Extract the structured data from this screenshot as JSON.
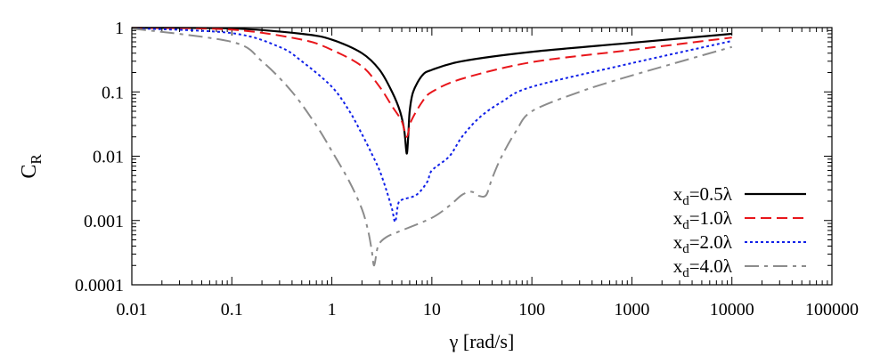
{
  "chart_data": {
    "type": "line",
    "xlabel": "γ [rad/s]",
    "ylabel": "C",
    "ylabel_sub": "R",
    "x_scale": "log",
    "y_scale": "log",
    "xlim": [
      0.01,
      100000
    ],
    "ylim": [
      0.0001,
      1
    ],
    "grid": false,
    "legend_position": "bottom-right",
    "x_ticks": [
      {
        "value": 0.01,
        "label": "0.01"
      },
      {
        "value": 0.1,
        "label": "0.1"
      },
      {
        "value": 1,
        "label": "1"
      },
      {
        "value": 10,
        "label": "10"
      },
      {
        "value": 100,
        "label": "100"
      },
      {
        "value": 1000,
        "label": "1000"
      },
      {
        "value": 10000,
        "label": "10000"
      },
      {
        "value": 100000,
        "label": "100000"
      }
    ],
    "y_ticks": [
      {
        "value": 0.0001,
        "label": "0.0001"
      },
      {
        "value": 0.001,
        "label": "0.001"
      },
      {
        "value": 0.01,
        "label": "0.01"
      },
      {
        "value": 0.1,
        "label": "0.1"
      },
      {
        "value": 1,
        "label": "1"
      }
    ],
    "series": [
      {
        "legend_main": "x",
        "legend_sub": "d",
        "legend_rest": "=0.5λ",
        "color": "#000000",
        "dash": "solid",
        "points": [
          [
            0.01,
            0.99
          ],
          [
            0.1,
            0.97
          ],
          [
            0.5,
            0.8
          ],
          [
            1,
            0.65
          ],
          [
            2,
            0.4
          ],
          [
            3,
            0.22
          ],
          [
            4,
            0.1
          ],
          [
            4.8,
            0.05
          ],
          [
            5.3,
            0.025
          ],
          [
            5.6,
            0.011
          ],
          [
            5.8,
            0.02
          ],
          [
            6,
            0.05
          ],
          [
            6.5,
            0.1
          ],
          [
            8,
            0.18
          ],
          [
            10,
            0.22
          ],
          [
            20,
            0.3
          ],
          [
            100,
            0.42
          ],
          [
            1000,
            0.58
          ],
          [
            10000,
            0.8
          ]
        ]
      },
      {
        "legend_main": "x",
        "legend_sub": "d",
        "legend_rest": "=1.0λ",
        "color": "#e8161b",
        "dash": "dashed",
        "points": [
          [
            0.01,
            0.99
          ],
          [
            0.1,
            0.93
          ],
          [
            0.5,
            0.65
          ],
          [
            1,
            0.45
          ],
          [
            2,
            0.25
          ],
          [
            3,
            0.12
          ],
          [
            4,
            0.06
          ],
          [
            5,
            0.035
          ],
          [
            5.6,
            0.02
          ],
          [
            6.2,
            0.035
          ],
          [
            8,
            0.07
          ],
          [
            10,
            0.1
          ],
          [
            20,
            0.16
          ],
          [
            100,
            0.29
          ],
          [
            1000,
            0.45
          ],
          [
            10000,
            0.7
          ]
        ]
      },
      {
        "legend_main": "x",
        "legend_sub": "d",
        "legend_rest": "=2.0λ",
        "color": "#1020e8",
        "dash": "dotted",
        "points": [
          [
            0.01,
            0.98
          ],
          [
            0.1,
            0.82
          ],
          [
            0.3,
            0.5
          ],
          [
            0.5,
            0.3
          ],
          [
            1,
            0.12
          ],
          [
            1.5,
            0.05
          ],
          [
            2,
            0.022
          ],
          [
            2.5,
            0.011
          ],
          [
            3,
            0.006
          ],
          [
            3.5,
            0.003
          ],
          [
            4,
            0.0015
          ],
          [
            4.3,
            0.00095
          ],
          [
            4.6,
            0.0018
          ],
          [
            5,
            0.0021
          ],
          [
            7,
            0.0025
          ],
          [
            9,
            0.004
          ],
          [
            10,
            0.006
          ],
          [
            15,
            0.01
          ],
          [
            20,
            0.02
          ],
          [
            30,
            0.04
          ],
          [
            50,
            0.07
          ],
          [
            100,
            0.12
          ],
          [
            1000,
            0.28
          ],
          [
            10000,
            0.62
          ]
        ]
      },
      {
        "legend_main": "x",
        "legend_sub": "d",
        "legend_rest": "=4.0λ",
        "color": "#8c8c8c",
        "dash": "dash-dot",
        "points": [
          [
            0.01,
            0.97
          ],
          [
            0.1,
            0.6
          ],
          [
            0.2,
            0.3
          ],
          [
            0.4,
            0.1
          ],
          [
            0.7,
            0.03
          ],
          [
            1,
            0.012
          ],
          [
            1.5,
            0.004
          ],
          [
            2,
            0.0015
          ],
          [
            2.3,
            0.0007
          ],
          [
            2.5,
            0.00035
          ],
          [
            2.65,
            0.0002
          ],
          [
            2.9,
            0.0004
          ],
          [
            3.5,
            0.00055
          ],
          [
            5,
            0.0007
          ],
          [
            10,
            0.0011
          ],
          [
            15,
            0.0017
          ],
          [
            20,
            0.0025
          ],
          [
            25,
            0.0028
          ],
          [
            30,
            0.0024
          ],
          [
            35,
            0.0025
          ],
          [
            40,
            0.0045
          ],
          [
            50,
            0.01
          ],
          [
            70,
            0.025
          ],
          [
            100,
            0.05
          ],
          [
            300,
            0.1
          ],
          [
            1000,
            0.18
          ],
          [
            10000,
            0.5
          ]
        ]
      }
    ]
  }
}
